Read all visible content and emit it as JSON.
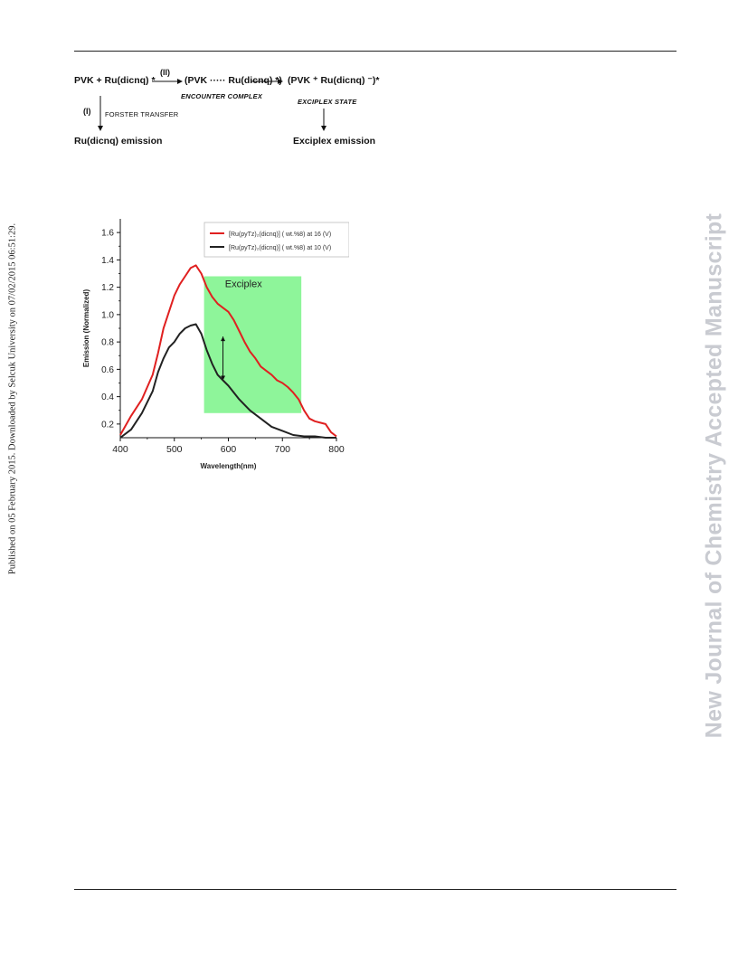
{
  "side_left_text": "Published on 05 February 2015. Downloaded by Selcuk University on 07/02/2015 06:51:29.",
  "side_right_text": "New Journal of Chemistry Accepted Manuscript",
  "scheme": {
    "reactants": "PVK + Ru(dicnq) *",
    "path_ii": "(II)",
    "encounter": "(PVK ····· Ru(dicnq) *)",
    "encounter_label": "ENCOUNTER COMPLEX",
    "exciplex": "(PVK ⁺ Ru(dicnq) ⁻)*",
    "exciplex_label": "EXCIPLEX STATE",
    "path_i": "(I)",
    "forster_label": "FORSTER TRANSFER",
    "ru_emission": "Ru(dicnq) emission",
    "exciplex_emission": "Exciplex emission"
  },
  "chart_data": {
    "type": "line",
    "xlabel": "Wavelength(nm)",
    "ylabel": "Emission (Normalized)",
    "xlim": [
      400,
      800
    ],
    "ylim": [
      0.1,
      1.7
    ],
    "xticks": [
      "400",
      "500",
      "600",
      "700",
      "800"
    ],
    "yticks": [
      "0.2",
      "0.4",
      "0.6",
      "0.8",
      "1.0",
      "1.2",
      "1.4",
      "1.6"
    ],
    "legend_position": "top-right",
    "annotation": "Exciplex",
    "highlight_region": {
      "x": [
        555,
        735
      ],
      "y": [
        0.28,
        1.28
      ],
      "color": "#8ef59a"
    },
    "series": [
      {
        "name": "[Ru(pyTz)₂(dicnq)] ( wt.%8) at 16 (V)",
        "color": "#e02020",
        "x": [
          400,
          420,
          440,
          460,
          470,
          480,
          490,
          500,
          510,
          520,
          530,
          540,
          550,
          560,
          570,
          580,
          590,
          600,
          610,
          620,
          630,
          640,
          650,
          660,
          670,
          680,
          690,
          700,
          710,
          720,
          730,
          740,
          750,
          760,
          770,
          780,
          790,
          800
        ],
        "y": [
          0.12,
          0.26,
          0.38,
          0.56,
          0.72,
          0.9,
          1.02,
          1.14,
          1.22,
          1.28,
          1.34,
          1.36,
          1.3,
          1.2,
          1.13,
          1.08,
          1.05,
          1.02,
          0.96,
          0.88,
          0.8,
          0.73,
          0.68,
          0.62,
          0.59,
          0.56,
          0.52,
          0.5,
          0.47,
          0.43,
          0.38,
          0.3,
          0.24,
          0.22,
          0.21,
          0.2,
          0.14,
          0.11
        ]
      },
      {
        "name": "[Ru(pyTz)₂(dicnq)] ( wt.%8) at 10 (V)",
        "color": "#222222",
        "x": [
          400,
          420,
          440,
          460,
          470,
          480,
          490,
          500,
          510,
          520,
          530,
          540,
          550,
          560,
          570,
          580,
          590,
          600,
          620,
          640,
          660,
          680,
          700,
          720,
          740,
          760,
          780,
          800
        ],
        "y": [
          0.1,
          0.16,
          0.28,
          0.44,
          0.58,
          0.68,
          0.76,
          0.8,
          0.86,
          0.9,
          0.92,
          0.93,
          0.86,
          0.74,
          0.64,
          0.56,
          0.52,
          0.48,
          0.38,
          0.3,
          0.24,
          0.18,
          0.15,
          0.12,
          0.11,
          0.11,
          0.1,
          0.1
        ]
      }
    ]
  }
}
